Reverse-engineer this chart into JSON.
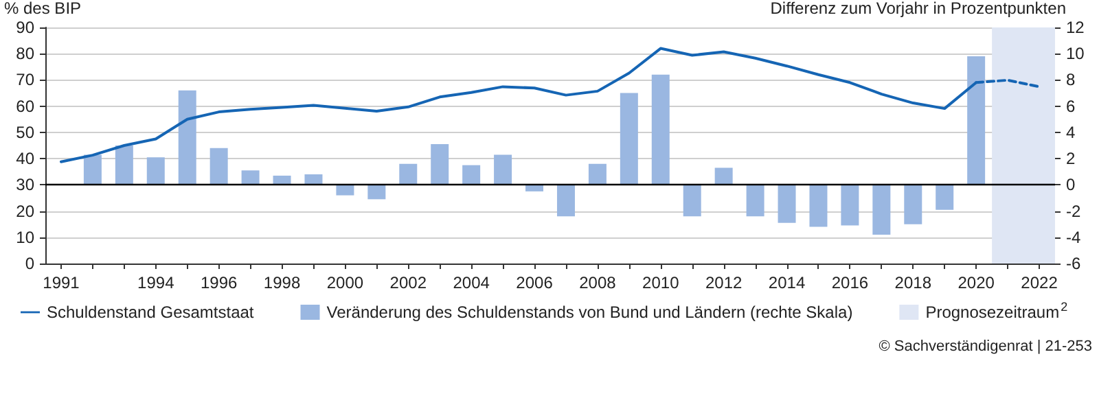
{
  "chart_data": {
    "type": "line",
    "ylabel": "% des BIP",
    "y2label": "Differenz zum Vorjahr in Prozentpunkten",
    "xlim": [
      1990.5,
      2022.5
    ],
    "xticks": [
      {
        "value": 1991,
        "label": "1991"
      },
      {
        "value": 1992,
        "label": null
      },
      {
        "value": 1993,
        "label": null
      },
      {
        "value": 1994,
        "label": "1994"
      },
      {
        "value": 1995,
        "label": null
      },
      {
        "value": 1996,
        "label": "1996"
      },
      {
        "value": 1997,
        "label": null
      },
      {
        "value": 1998,
        "label": "1998"
      },
      {
        "value": 1999,
        "label": null
      },
      {
        "value": 2000,
        "label": "2000"
      },
      {
        "value": 2001,
        "label": null
      },
      {
        "value": 2002,
        "label": "2002"
      },
      {
        "value": 2003,
        "label": null
      },
      {
        "value": 2004,
        "label": "2004"
      },
      {
        "value": 2005,
        "label": null
      },
      {
        "value": 2006,
        "label": "2006"
      },
      {
        "value": 2007,
        "label": null
      },
      {
        "value": 2008,
        "label": "2008"
      },
      {
        "value": 2009,
        "label": null
      },
      {
        "value": 2010,
        "label": "2010"
      },
      {
        "value": 2011,
        "label": null
      },
      {
        "value": 2012,
        "label": "2012"
      },
      {
        "value": 2013,
        "label": null
      },
      {
        "value": 2014,
        "label": "2014"
      },
      {
        "value": 2015,
        "label": null
      },
      {
        "value": 2016,
        "label": "2016"
      },
      {
        "value": 2017,
        "label": null
      },
      {
        "value": 2018,
        "label": "2018"
      },
      {
        "value": 2019,
        "label": null
      },
      {
        "value": 2020,
        "label": "2020"
      },
      {
        "value": 2021,
        "label": null
      },
      {
        "value": 2022,
        "label": "2022"
      }
    ],
    "ylim": [
      0,
      90
    ],
    "yticks": [
      0,
      10,
      20,
      30,
      40,
      50,
      60,
      70,
      80,
      90
    ],
    "y2lim": [
      -6,
      12
    ],
    "y2ticks": [
      -6,
      -4,
      -2,
      0,
      2,
      4,
      6,
      8,
      10,
      12
    ],
    "series": [
      {
        "name": "Schuldenstand Gesamtstaat",
        "color": "#1565b4",
        "line_style": "solid",
        "x": [
          1991,
          1992,
          1993,
          1994,
          1995,
          1996,
          1997,
          1998,
          1999,
          2000,
          2001,
          2002,
          2003,
          2004,
          2005,
          2006,
          2007,
          2008,
          2009,
          2010,
          2011,
          2012,
          2013,
          2014,
          2015,
          2016,
          2017,
          2018,
          2019,
          2020
        ],
        "values": [
          38.8,
          41.3,
          45.0,
          47.5,
          55.0,
          57.8,
          58.8,
          59.5,
          60.3,
          59.2,
          58.1,
          59.7,
          63.5,
          65.2,
          67.4,
          66.9,
          64.2,
          65.7,
          72.6,
          82.0,
          79.4,
          80.7,
          78.3,
          75.3,
          72.0,
          69.0,
          64.6,
          61.2,
          59.1,
          69.0
        ]
      },
      {
        "color": "#1565b4",
        "line_style": "dashed",
        "x": [
          2020,
          2021,
          2022
        ],
        "values": [
          69.0,
          69.9,
          67.4
        ]
      },
      {
        "name": "Veränderung des Schuldenstands von Bund und Ländern (rechte Skala)",
        "type": "bar",
        "axis": "y2",
        "color": "#9ab7e1",
        "x": [
          1992,
          1993,
          1994,
          1995,
          1996,
          1997,
          1998,
          1999,
          2000,
          2001,
          2002,
          2003,
          2004,
          2005,
          2006,
          2007,
          2008,
          2009,
          2010,
          2011,
          2012,
          2013,
          2014,
          2015,
          2016,
          2017,
          2018,
          2019,
          2020
        ],
        "values": [
          2.3,
          3.0,
          2.1,
          7.2,
          2.8,
          1.1,
          0.7,
          0.8,
          -0.8,
          -1.1,
          1.6,
          3.1,
          1.5,
          2.3,
          -0.5,
          -2.4,
          1.6,
          7.0,
          8.4,
          -2.4,
          1.3,
          -2.4,
          -2.9,
          -3.2,
          -3.1,
          -3.8,
          -3.0,
          -1.9,
          9.8
        ]
      }
    ],
    "bands": [
      {
        "axis": "x",
        "from": 2020.5,
        "to": 2022.5,
        "label": "Prognosezeitraum$^{2}$",
        "color": "#dfe6f4"
      }
    ],
    "ref_lines": [
      {
        "axis": "y2",
        "value": 0,
        "color": "#000000"
      }
    ],
    "grid": "y",
    "legend": "bottom",
    "marker": "none",
    "annotations": [
      "© Sachverständigenrat | 21-253"
    ]
  }
}
